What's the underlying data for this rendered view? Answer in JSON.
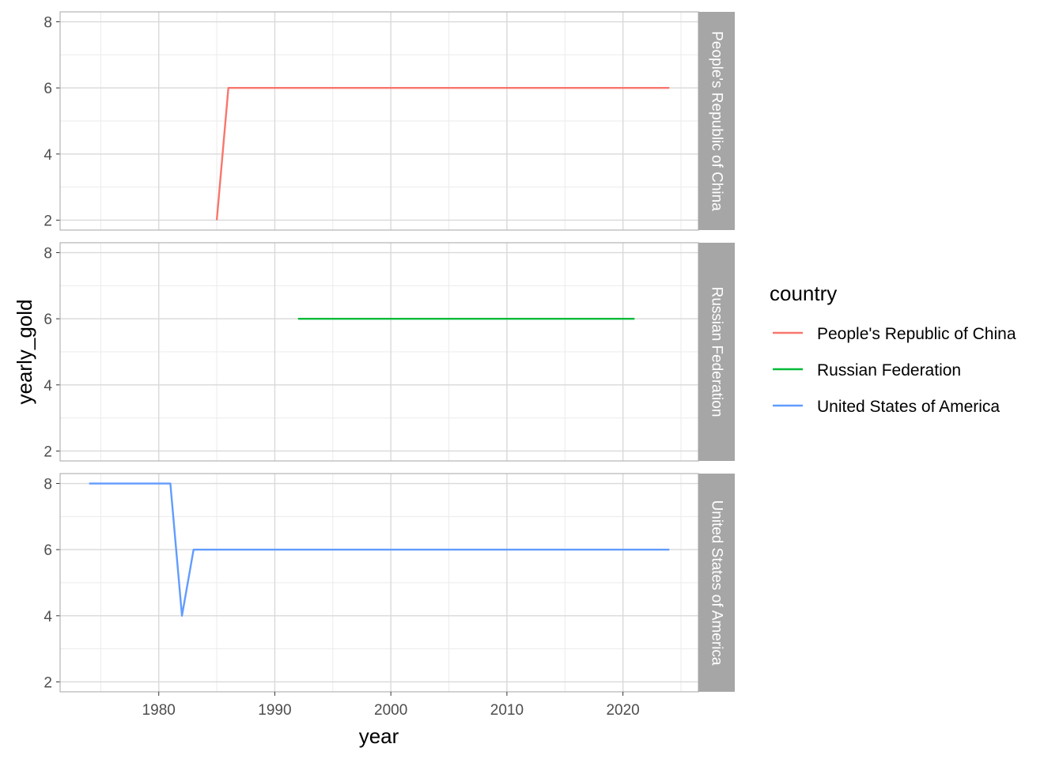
{
  "chart_data": {
    "type": "line",
    "xlabel": "year",
    "ylabel": "yearly_gold",
    "xlim": [
      1971.5,
      2026.5
    ],
    "ylim": [
      1.7,
      8.3
    ],
    "x_ticks": [
      1980,
      1990,
      2000,
      2010,
      2020
    ],
    "y_ticks": [
      2,
      4,
      6,
      8
    ],
    "grid": true,
    "facets": [
      "People's Republic of China",
      "Russian Federation",
      "United States of America"
    ],
    "legend": {
      "title": "country",
      "placement": "right",
      "entries": [
        "People's Republic of China",
        "Russian Federation",
        "United States of America"
      ]
    },
    "series": [
      {
        "name": "People's Republic of China",
        "color": "#F8766D",
        "facet": 0,
        "points": [
          [
            1985,
            2
          ],
          [
            1986,
            6
          ],
          [
            2024,
            6
          ]
        ]
      },
      {
        "name": "Russian Federation",
        "color": "#00BA38",
        "facet": 1,
        "points": [
          [
            1992,
            6
          ],
          [
            2021,
            6
          ]
        ]
      },
      {
        "name": "United States of America",
        "color": "#619CFF",
        "facet": 2,
        "points": [
          [
            1974,
            8
          ],
          [
            1981,
            8
          ],
          [
            1982,
            4
          ],
          [
            1983,
            6
          ],
          [
            2024,
            6
          ]
        ]
      }
    ]
  }
}
